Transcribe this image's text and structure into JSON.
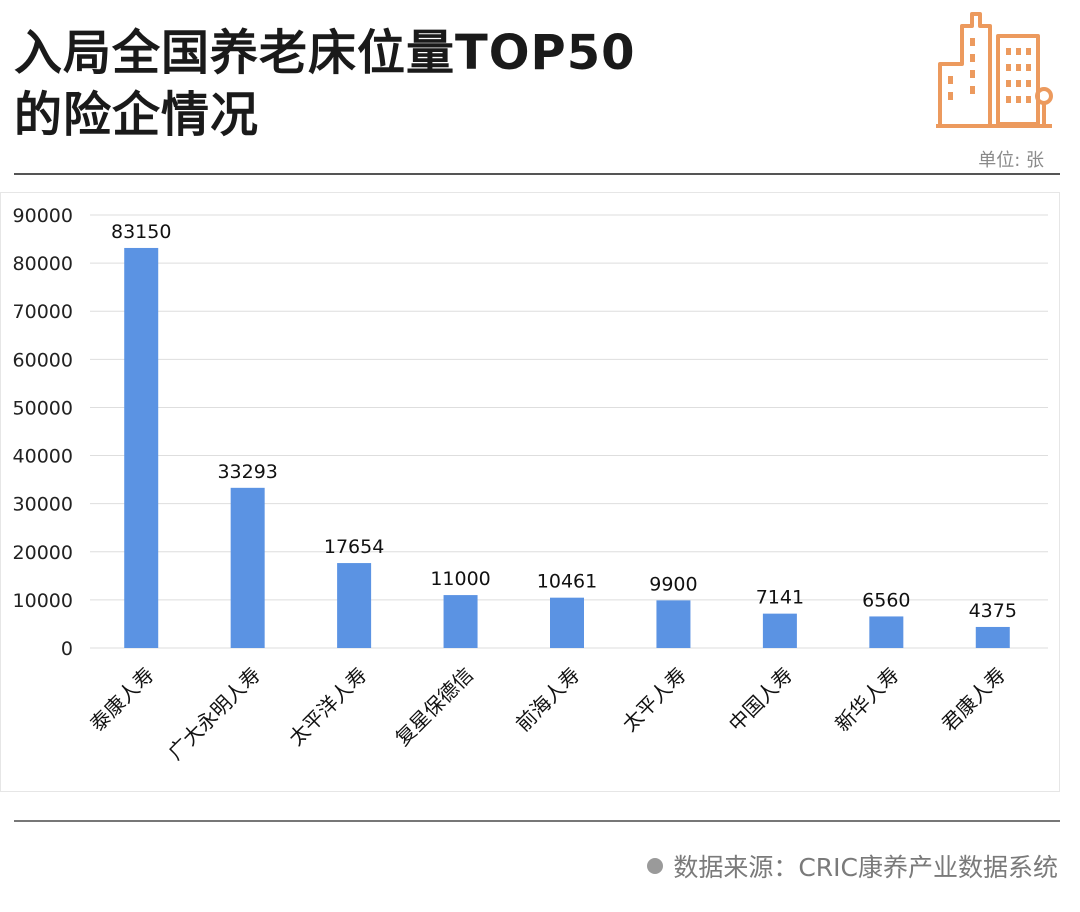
{
  "header": {
    "title_line1": "入局全国养老床位量TOP50",
    "title_line2": "的险企情况",
    "unit_label": "单位: 张",
    "logo_icon": "building-icon"
  },
  "footer": {
    "source_text": "数据来源：CRIC康养产业数据系统"
  },
  "colors": {
    "bar": "#5b93e3",
    "logo": "#ec9a5e",
    "grid": "#dedede"
  },
  "chart_data": {
    "type": "bar",
    "categories": [
      "泰康人寿",
      "广大永明人寿",
      "太平洋人寿",
      "复星保德信",
      "前海人寿",
      "太平人寿",
      "中国人寿",
      "新华人寿",
      "君康人寿"
    ],
    "values": [
      83150,
      33293,
      17654,
      11000,
      10461,
      9900,
      7141,
      6560,
      4375
    ],
    "title": "",
    "xlabel": "",
    "ylabel": "",
    "ylim": [
      0,
      90000
    ],
    "yticks": [
      0,
      10000,
      20000,
      30000,
      40000,
      50000,
      60000,
      70000,
      80000,
      90000
    ],
    "grid": true,
    "data_labels": true,
    "legend": "none"
  }
}
